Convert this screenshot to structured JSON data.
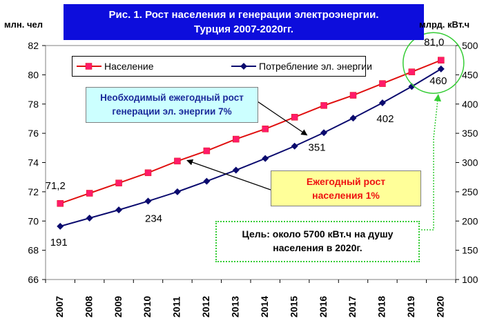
{
  "title_lines": [
    "Рис. 1. Рост населения и генерации электроэнергии.",
    "Турция 2007-2020гг."
  ],
  "colors": {
    "title_bg": "#0d0ddc",
    "population": "#e01010",
    "population_marker": "#ff1b6a",
    "consumption": "#0a0a6e",
    "goal_highlight": "#33cc33",
    "callout_generation_bg": "#ccffff",
    "callout_population_bg": "#ffff99"
  },
  "callouts": {
    "generation": [
      "Необходимый ежегодный рост",
      "генерации эл. энергии 7%"
    ],
    "population": [
      "Ежегодный рост",
      "населения 1%"
    ],
    "goal": [
      "Цель: около 5700 кВт.ч на душу",
      "населения в 2020г."
    ]
  },
  "chart_data": {
    "type": "line",
    "title": "Рис. 1. Рост населения и генерации электроэнергии. Турция 2007-2020гг.",
    "categories": [
      "2007",
      "2008",
      "2009",
      "2010",
      "2011",
      "2012",
      "2013",
      "2014",
      "2015",
      "2016",
      "2017",
      "2018",
      "2019",
      "2020"
    ],
    "y_left": {
      "label": "млн. чел",
      "lim": [
        66,
        82
      ],
      "ticks": [
        "66",
        "68",
        "70",
        "72",
        "74",
        "76",
        "78",
        "80",
        "82"
      ]
    },
    "y_right": {
      "label": "млрд. кВт.ч",
      "lim": [
        100,
        500
      ],
      "ticks": [
        "100",
        "150",
        "200",
        "250",
        "300",
        "350",
        "400",
        "450",
        "500"
      ]
    },
    "legend_position": "top-left",
    "grid": false,
    "series": [
      {
        "name": "Население",
        "axis": "left",
        "marker": "square",
        "values": [
          71.2,
          71.9,
          72.6,
          73.3,
          74.1,
          74.8,
          75.6,
          76.3,
          77.1,
          77.9,
          78.6,
          79.4,
          80.2,
          81.0
        ]
      },
      {
        "name": "Потребление эл. энергии",
        "axis": "right",
        "marker": "diamond",
        "values": [
          191,
          205,
          219,
          234,
          250,
          268,
          287,
          307,
          328,
          351,
          376,
          402,
          430,
          460
        ]
      }
    ],
    "data_labels": [
      {
        "series": "Население",
        "index": 0,
        "text": "71,2"
      },
      {
        "series": "Население",
        "index": 13,
        "text": "81,0"
      },
      {
        "series": "Потребление эл. энергии",
        "index": 0,
        "text": "191"
      },
      {
        "series": "Потребление эл. энергии",
        "index": 3,
        "text": "234"
      },
      {
        "series": "Потребление эл. энергии",
        "index": 9,
        "text": "351"
      },
      {
        "series": "Потребление эл. энергии",
        "index": 11,
        "text": "402"
      },
      {
        "series": "Потребление эл. энергии",
        "index": 13,
        "text": "460"
      }
    ]
  }
}
